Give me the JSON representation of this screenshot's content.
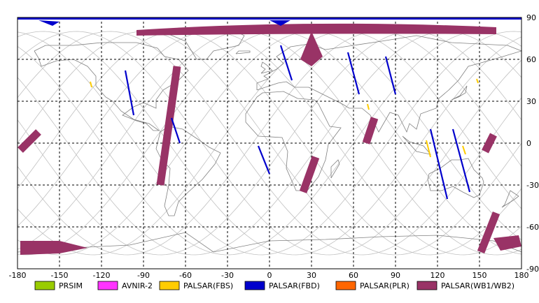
{
  "map": {
    "projection": "equirectangular",
    "lon_range": [
      -180,
      180
    ],
    "lat_range": [
      -90,
      90
    ],
    "grid": "dashed, every 30 degrees",
    "x_ticks": [
      "-180",
      "-150",
      "-120",
      "-90",
      "-60",
      "-30",
      "0",
      "30",
      "60",
      "90",
      "120",
      "150",
      "180"
    ],
    "y_ticks": [
      "90",
      "60",
      "30",
      "0",
      "-30",
      "-60",
      "-90"
    ]
  },
  "legend": [
    {
      "label": "PRSIM",
      "color": "#99cc00"
    },
    {
      "label": "AVNIR-2",
      "color": "#ff33ff"
    },
    {
      "label": "PALSAR(FBS)",
      "color": "#ffcc00"
    },
    {
      "label": "PALSAR(FBD)",
      "color": "#0000cc"
    },
    {
      "label": "PALSAR(PLR)",
      "color": "#ff6600"
    },
    {
      "label": "PALSAR(WB1/WB2)",
      "color": "#993366"
    }
  ],
  "colors": {
    "wb": "#993366",
    "fbd": "#0000cc",
    "fbs": "#ffcc00",
    "orbit": "#c0c0c0",
    "coast": "#808080",
    "grid": "#000000"
  },
  "observations": {
    "wb_swaths": [
      {
        "lon": [
          -165,
          -178
        ],
        "lat": [
          8,
          -5
        ]
      },
      {
        "lon": [
          -66,
          -78
        ],
        "lat": [
          55,
          -30
        ]
      },
      {
        "lon": [
          33,
          24
        ],
        "lat": [
          -10,
          -35
        ]
      },
      {
        "lon": [
          75,
          69
        ],
        "lat": [
          18,
          0
        ]
      },
      {
        "lon": [
          160,
          154
        ],
        "lat": [
          6,
          -6
        ]
      },
      {
        "lon": [
          162,
          151
        ],
        "lat": [
          -50,
          -78
        ]
      }
    ],
    "wb_polar_north": {
      "lon": [
        -95,
        162
      ],
      "lat": [
        83,
        80
      ]
    },
    "wb_polar_south": {
      "lon": [
        -178,
        -130
      ],
      "lat": [
        -70,
        -80
      ]
    },
    "fbd_swaths": [
      {
        "lon": [
          -103,
          -97
        ],
        "lat": [
          52,
          20
        ]
      },
      {
        "lon": [
          -70,
          -64
        ],
        "lat": [
          18,
          0
        ]
      },
      {
        "lon": [
          -8,
          0
        ],
        "lat": [
          -2,
          -22
        ]
      },
      {
        "lon": [
          8,
          16
        ],
        "lat": [
          70,
          45
        ]
      },
      {
        "lon": [
          56,
          64
        ],
        "lat": [
          65,
          35
        ]
      },
      {
        "lon": [
          83,
          90
        ],
        "lat": [
          62,
          35
        ]
      },
      {
        "lon": [
          115,
          127
        ],
        "lat": [
          10,
          -40
        ]
      },
      {
        "lon": [
          131,
          143
        ],
        "lat": [
          10,
          -35
        ]
      }
    ],
    "fbs_marks": [
      {
        "lon": [
          -128,
          -127
        ],
        "lat": [
          44,
          40
        ]
      },
      {
        "lon": [
          70,
          71
        ],
        "lat": [
          28,
          24
        ]
      },
      {
        "lon": [
          112,
          115
        ],
        "lat": [
          2,
          -10
        ]
      },
      {
        "lon": [
          138,
          140
        ],
        "lat": [
          -2,
          -8
        ]
      },
      {
        "lon": [
          148,
          149
        ],
        "lat": [
          46,
          43
        ]
      }
    ]
  }
}
